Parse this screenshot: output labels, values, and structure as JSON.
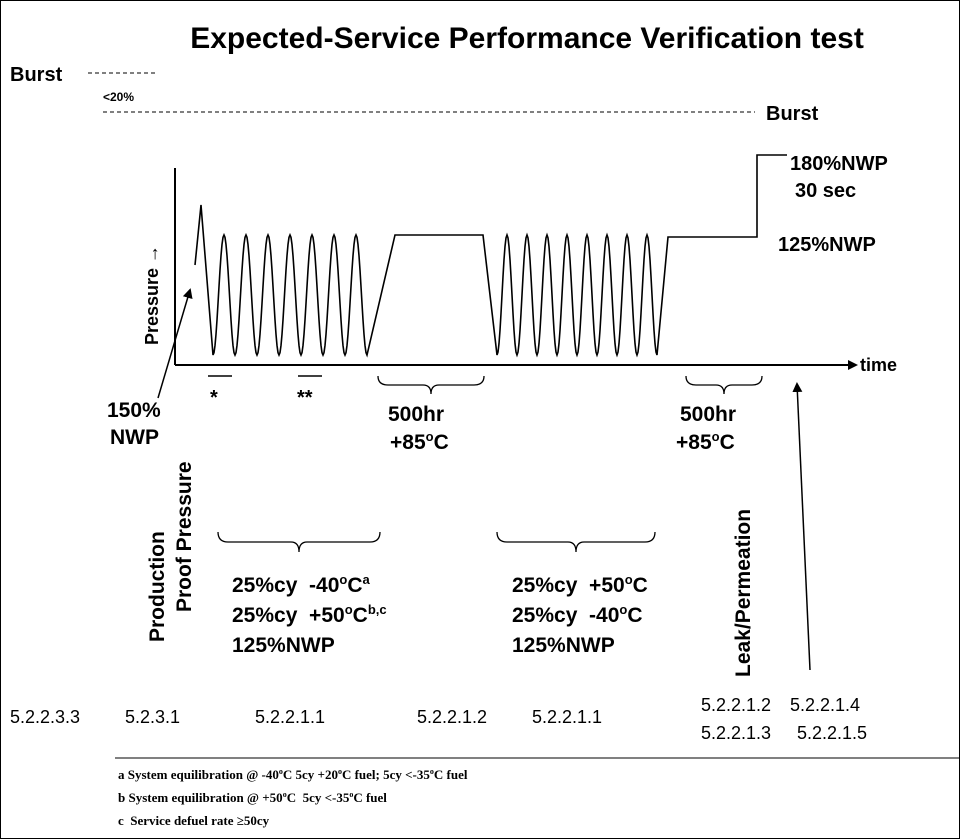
{
  "title": "Expected-Service Performance Verification test",
  "left_burst": "Burst",
  "margin_label": "<20%",
  "right_burst": "Burst",
  "hold_pressure": "180%NWP",
  "hold_time": "30 sec",
  "service_pressure": "125%NWP",
  "y_axis_label": "Pressure →",
  "x_axis_label": "time",
  "proof_value": "150%",
  "proof_unit": "NWP",
  "marker_a": "*",
  "marker_b": "**",
  "static_1": {
    "duration": "500hr",
    "temperature": [
      "+85",
      {
        "sup": "o"
      },
      "C"
    ]
  },
  "static_2": {
    "duration": "500hr",
    "temperature": [
      "+85",
      {
        "sup": "o"
      },
      "C"
    ]
  },
  "vertical_labels": {
    "production": "Production",
    "proof": "Proof Pressure",
    "leak": "Leak/Permeation"
  },
  "conditions_1": [
    [
      "25%cy  -40",
      {
        "sup": "o"
      },
      "C",
      {
        "sup": "a"
      }
    ],
    [
      "25%cy  +50",
      {
        "sup": "o"
      },
      "C",
      {
        "sup": "b,c"
      }
    ],
    [
      "125%NWP"
    ]
  ],
  "conditions_2": [
    [
      "25%cy  +50",
      {
        "sup": "o"
      },
      "C"
    ],
    [
      "25%cy  -40",
      {
        "sup": "o"
      },
      "C"
    ],
    [
      "125%NWP"
    ]
  ],
  "sections": [
    "5.2.2.3.3",
    "5.2.3.1",
    "5.2.2.1.1",
    "5.2.2.1.2",
    "5.2.2.1.1",
    "5.2.2.1.2",
    "5.2.2.1.3",
    "5.2.2.1.4",
    "5.2.2.1.5"
  ],
  "footnotes": [
    [
      "a System equilibration @ -40",
      {
        "sup": "o"
      },
      "C 5cy +20",
      {
        "sup": "o"
      },
      "C fuel; 5cy <-35",
      {
        "sup": "o"
      },
      "C fuel"
    ],
    [
      "b System equilibration @ +50",
      {
        "sup": "o"
      },
      "C  5cy <-35",
      {
        "sup": "o"
      },
      "C fuel"
    ],
    [
      "c  Service defuel rate ≥50cy"
    ]
  ]
}
